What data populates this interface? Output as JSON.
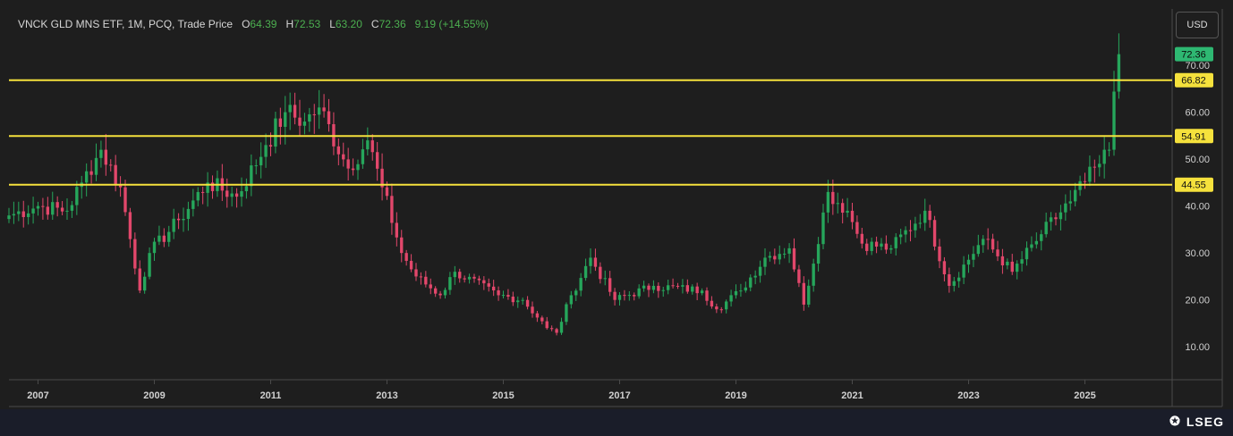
{
  "header": {
    "instrument": "VNCK GLD MNS ETF, 1M, PCQ, Trade Price",
    "open_label": "O",
    "open": "64.39",
    "high_label": "H",
    "high": "72.53",
    "low_label": "L",
    "low": "63.20",
    "close_label": "C",
    "close": "72.36",
    "change": "9.19 (+14.55%)"
  },
  "currency_button": "USD",
  "brand": "LSEG",
  "colors": {
    "up": "#26a65b",
    "down": "#e2476b",
    "level": "#f5e13c",
    "last": "#2eb872"
  },
  "chart_data": {
    "type": "candlestick",
    "title": "VNCK GLD MNS ETF, 1M, PCQ, Trade Price",
    "y_axis": {
      "ticks": [
        "10.00",
        "20.00",
        "30.00",
        "40.00",
        "50.00",
        "60.00",
        "70.00"
      ],
      "range": [
        3,
        82
      ],
      "grid": false
    },
    "x_axis": {
      "ticks": [
        "2007",
        "2009",
        "2011",
        "2013",
        "2015",
        "2017",
        "2019",
        "2021",
        "2023",
        "2025"
      ],
      "range": [
        "2006-07",
        "2026-07"
      ]
    },
    "horizontal_levels": [
      {
        "value": 66.82,
        "label": "66.82"
      },
      {
        "value": 54.91,
        "label": "54.91"
      },
      {
        "value": 44.55,
        "label": "44.55"
      }
    ],
    "last_price": {
      "value": 72.36,
      "label": "72.36"
    },
    "monthly_close_anchors": [
      [
        "2006-07",
        38
      ],
      [
        "2007-01",
        40
      ],
      [
        "2007-07",
        39
      ],
      [
        "2007-10",
        45
      ],
      [
        "2008-02",
        52
      ],
      [
        "2008-06",
        44
      ],
      [
        "2008-10",
        22
      ],
      [
        "2008-12",
        30
      ],
      [
        "2009-06",
        37
      ],
      [
        "2009-12",
        45
      ],
      [
        "2010-06",
        42
      ],
      [
        "2010-12",
        53
      ],
      [
        "2011-04",
        60
      ],
      [
        "2011-08",
        58
      ],
      [
        "2011-11",
        61
      ],
      [
        "2012-05",
        48
      ],
      [
        "2012-09",
        54
      ],
      [
        "2012-12",
        44
      ],
      [
        "2013-04",
        30
      ],
      [
        "2013-07",
        25
      ],
      [
        "2013-12",
        21
      ],
      [
        "2014-03",
        26
      ],
      [
        "2014-12",
        21
      ],
      [
        "2015-05",
        20
      ],
      [
        "2015-10",
        14
      ],
      [
        "2015-12",
        13
      ],
      [
        "2016-03",
        21
      ],
      [
        "2016-07",
        29
      ],
      [
        "2016-12",
        20
      ],
      [
        "2017-08",
        23
      ],
      [
        "2018-06",
        22
      ],
      [
        "2018-09",
        18
      ],
      [
        "2019-02",
        22
      ],
      [
        "2019-07",
        29
      ],
      [
        "2019-12",
        31
      ],
      [
        "2020-03",
        19
      ],
      [
        "2020-08",
        43
      ],
      [
        "2020-12",
        39
      ],
      [
        "2021-03",
        32
      ],
      [
        "2021-09",
        31
      ],
      [
        "2022-04",
        39
      ],
      [
        "2022-09",
        23
      ],
      [
        "2023-04",
        33
      ],
      [
        "2023-10",
        26
      ],
      [
        "2024-04",
        34
      ],
      [
        "2024-10",
        41
      ],
      [
        "2025-04",
        49
      ],
      [
        "2025-06",
        52
      ],
      [
        "2025-07",
        64.39
      ],
      [
        "2025-08",
        72.36
      ]
    ]
  }
}
